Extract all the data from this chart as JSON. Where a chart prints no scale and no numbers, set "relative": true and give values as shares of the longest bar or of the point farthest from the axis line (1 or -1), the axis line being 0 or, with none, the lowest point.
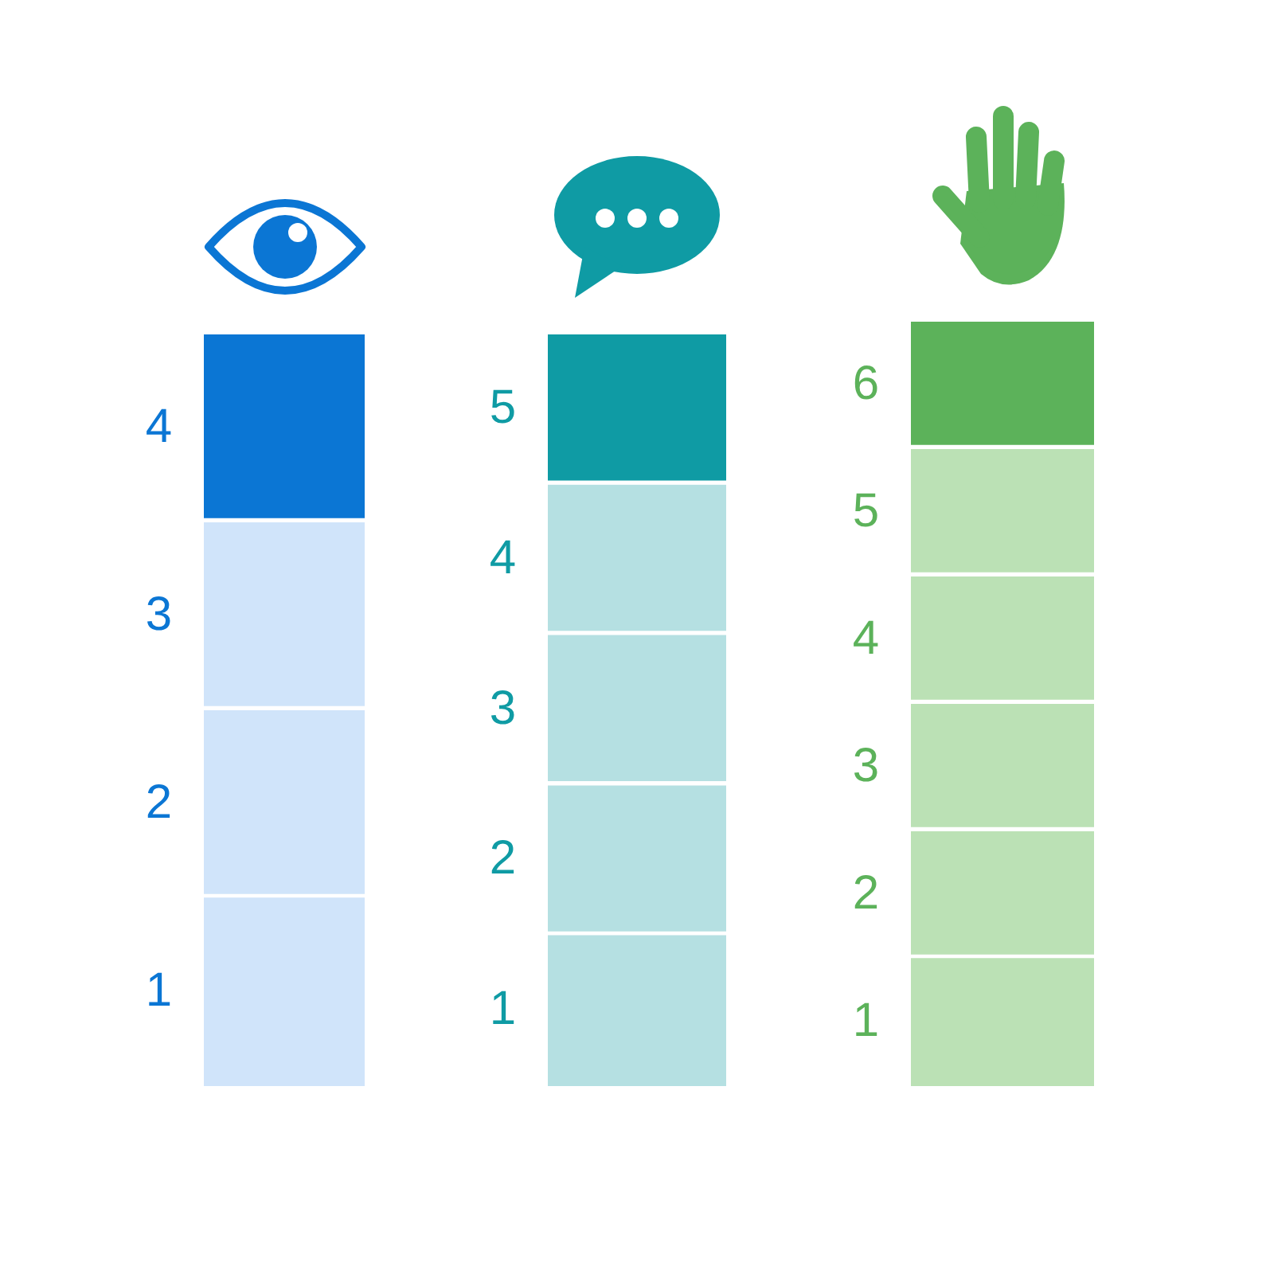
{
  "chart_data": [
    {
      "type": "bar",
      "orientation": "horizontal",
      "relative": true,
      "categories": [
        "4",
        "3",
        "2",
        "1"
      ],
      "values": [
        1,
        1,
        1,
        1
      ],
      "colors": [
        "#0b76d4",
        "#d0e4fa",
        "#d0e4fa",
        "#d0e4fa"
      ]
    },
    {
      "type": "bar",
      "orientation": "horizontal",
      "relative": true,
      "categories": [
        "5",
        "4",
        "3",
        "2",
        "1"
      ],
      "values": [
        1,
        1,
        1,
        1,
        1
      ],
      "colors": [
        "#0f9ba4",
        "#b5e0e2",
        "#b5e0e2",
        "#b5e0e2",
        "#b5e0e2"
      ]
    },
    {
      "type": "bar",
      "orientation": "horizontal",
      "relative": true,
      "categories": [
        "6",
        "5",
        "4",
        "3",
        "2",
        "1"
      ],
      "values": [
        1,
        1,
        1,
        1,
        1,
        1
      ],
      "colors": [
        "#5cb25a",
        "#bbe1b5",
        "#bbe1b5",
        "#bbe1b5",
        "#bbe1b5",
        "#bbe1b5"
      ]
    }
  ]
}
